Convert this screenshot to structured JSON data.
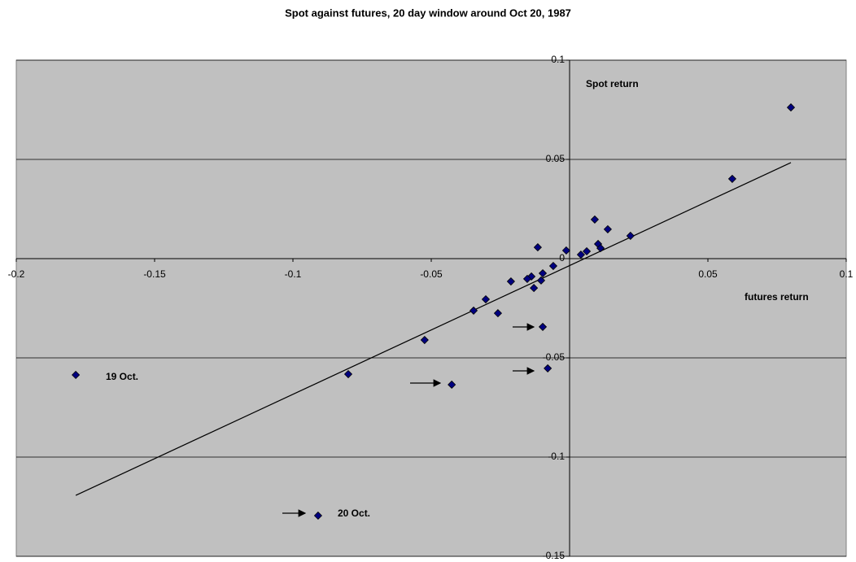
{
  "chart_data": {
    "type": "scatter",
    "title": "Spot against futures, 20 day window around Oct 20, 1987",
    "x_label": "futures return",
    "y_label": "Spot return",
    "series": [
      {
        "name": "Spot return",
        "color": "#000080",
        "x": [
          0.08,
          0.0588,
          0.022,
          0.0138,
          0.0091,
          0.0103,
          0.0112,
          0.0062,
          0.0041,
          -0.0012,
          -0.0059,
          -0.0115,
          -0.0097,
          -0.0103,
          -0.0138,
          -0.0153,
          -0.0129,
          -0.0212,
          -0.0303,
          -0.0259,
          -0.0347,
          -0.0524,
          -0.0097,
          -0.0079,
          -0.0426,
          -0.08,
          -0.0909,
          -0.1785
        ],
        "values": [
          0.0762,
          0.0402,
          0.0115,
          0.0148,
          0.0197,
          0.0074,
          0.0053,
          0.0037,
          0.002,
          0.0041,
          -0.0037,
          0.0057,
          -0.0074,
          -0.011,
          -0.009,
          -0.0102,
          -0.0148,
          -0.0115,
          -0.0205,
          -0.0275,
          -0.0262,
          -0.041,
          -0.0344,
          -0.0553,
          -0.0635,
          -0.0582,
          -0.1295,
          -0.0586
        ]
      }
    ],
    "trendline": {
      "color": "#000000",
      "x": [
        -0.1785,
        0.08
      ],
      "values": [
        -0.1193,
        0.0484
      ]
    },
    "annotations": [
      "19 Oct.",
      "20 Oct."
    ],
    "xlim": [
      -0.2,
      0.1
    ],
    "ylim": [
      -0.15,
      0.1
    ],
    "xticks": [
      -0.2,
      -0.15,
      -0.1,
      -0.05,
      0.05,
      0.1
    ],
    "yticks": [
      -0.15,
      -0.1,
      -0.05,
      0,
      0.05,
      0.1
    ],
    "grid": true,
    "background": "#c0c0c0"
  }
}
